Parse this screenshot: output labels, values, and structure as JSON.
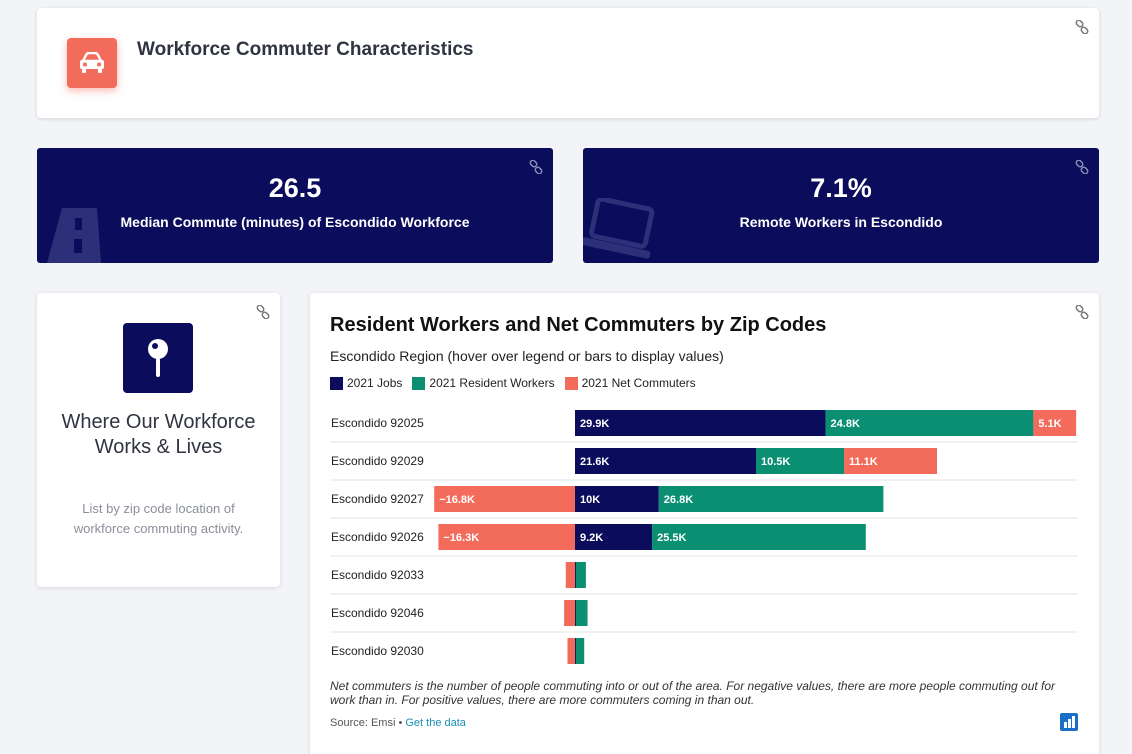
{
  "header": {
    "title": "Workforce Commuter Characteristics",
    "icon": "car-icon"
  },
  "stats": [
    {
      "value": "26.5",
      "label": "Median Commute (minutes) of Escondido Workforce",
      "icon": "road-icon"
    },
    {
      "value": "7.1%",
      "label": "Remote Workers in Escondido",
      "icon": "laptop-icon"
    }
  ],
  "side": {
    "icon": "map-pin-icon",
    "title": "Where Our Workforce Works & Lives",
    "description": "List by zip code location of workforce commuting activity."
  },
  "chart": {
    "title": "Resident Workers and Net Commuters by Zip Codes",
    "subtitle": "Escondido Region (hover over legend or bars to display values)",
    "note": "Net commuters is the number of people commuting into or out of the area. For negative values, there are more people commuting out for work than in. For positive values, there are more commuters coming in than out.",
    "source_prefix": "Source: Emsi • ",
    "source_link": "Get the data"
  },
  "colors": {
    "navy": "#0b0d5c",
    "green": "#0a8f72",
    "coral": "#f26b5b",
    "background": "#f3f4f8"
  },
  "chart_data": {
    "type": "bar",
    "orientation": "horizontal-stacked",
    "categories": [
      "Escondido 92025",
      "Escondido 92029",
      "Escondido 92027",
      "Escondido 92026",
      "Escondido 92033",
      "Escondido 92046",
      "Escondido 92030"
    ],
    "series": [
      {
        "name": "2021 Jobs",
        "color": "#0b0d5c",
        "values": [
          29.9,
          21.6,
          10,
          9.2,
          0.1,
          0.1,
          0.1
        ],
        "labels": [
          "29.9K",
          "21.6K",
          "10K",
          "9.2K",
          "",
          "",
          ""
        ]
      },
      {
        "name": "2021 Resident Workers",
        "color": "#0a8f72",
        "values": [
          24.8,
          10.5,
          26.8,
          25.5,
          1.2,
          1.4,
          1.0
        ],
        "labels": [
          "24.8K",
          "10.5K",
          "26.8K",
          "25.5K",
          "",
          "",
          ""
        ]
      },
      {
        "name": "2021 Net Commuters",
        "color": "#f26b5b",
        "values": [
          5.1,
          11.1,
          -16.8,
          -16.3,
          -1.1,
          -1.3,
          -0.9
        ],
        "labels": [
          "5.1K",
          "11.1K",
          "−16.8K",
          "−16.3K",
          "",
          "",
          ""
        ]
      }
    ],
    "unit": "thousands",
    "legend": "top-left"
  }
}
